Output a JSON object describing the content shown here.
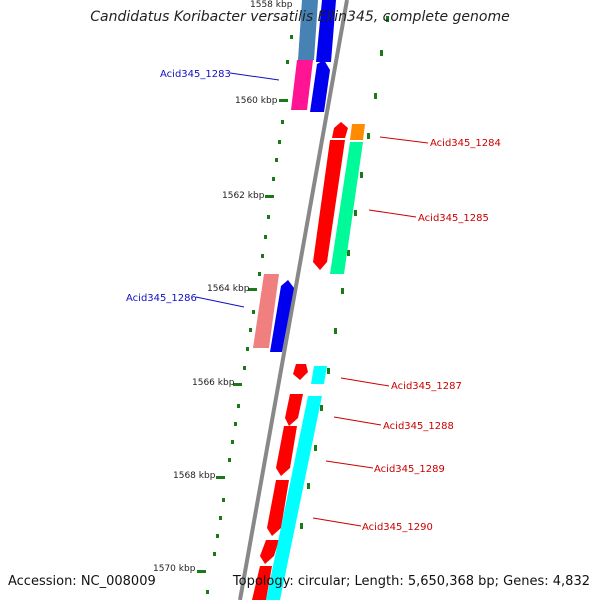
{
  "header": {
    "title": "Candidatus Koribacter versatilis Ellin345, complete genome"
  },
  "footer": {
    "accession": "Accession: NC_008009",
    "summary": "Topology: circular; Length: 5,650,368 bp; Genes: 4,832"
  },
  "scale_labels": [
    "1558 kbp",
    "1560 kbp",
    "1562 kbp",
    "1564 kbp",
    "1566 kbp",
    "1568 kbp",
    "1570 kbp"
  ],
  "genes_left": [
    "Acid345_1283",
    "Acid345_1286"
  ],
  "genes_right": [
    "Acid345_1284",
    "Acid345_1285",
    "Acid345_1287",
    "Acid345_1288",
    "Acid345_1289",
    "Acid345_1290"
  ],
  "colors": {
    "left_label": "#1010c0",
    "right_label": "#cc0000",
    "backbone": "#888888",
    "tick": "#1a7a1a",
    "cds_red": "#ff0000",
    "cds_blue": "#0000ee",
    "steel_blue": "#4682b4",
    "magenta": "#ff1493",
    "salmon": "#f08080",
    "orange": "#ff8c00",
    "spring_green": "#00fa9a",
    "cyan": "#00ffff"
  }
}
